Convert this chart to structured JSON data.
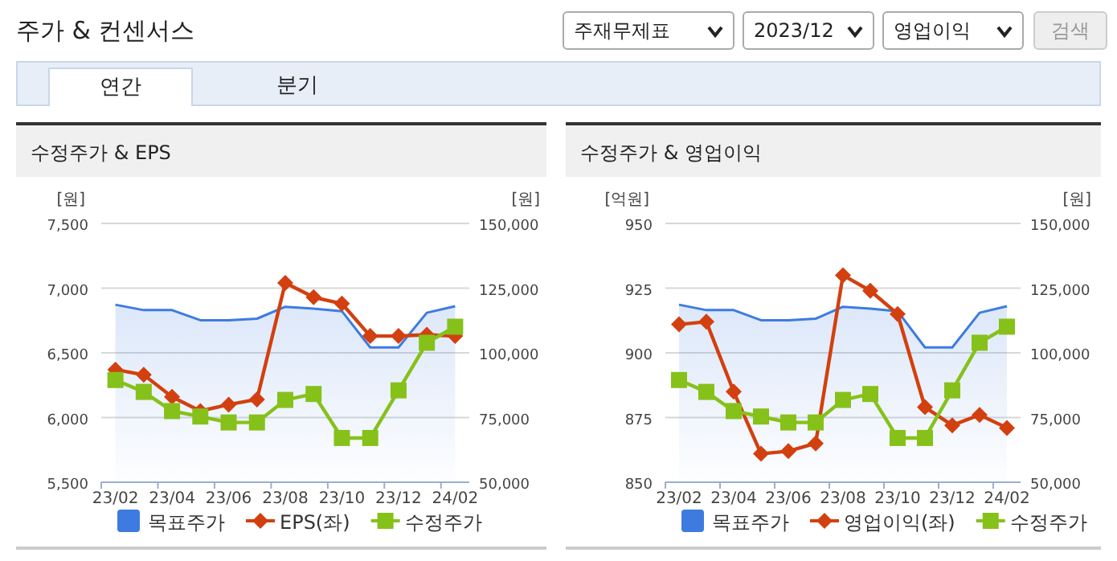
{
  "chart_data": [
    {
      "type": "other",
      "title": "주가 & 컨센서스",
      "annotations": [
        "주재무제표",
        "2023/12",
        "영업이익",
        "검색",
        "연간",
        "분기"
      ]
    },
    {
      "type": "line",
      "title": "수정주가 & EPS",
      "ylabel": "[원]",
      "y2label": "[원]",
      "categories": [
        "23/02",
        null,
        "23/04",
        null,
        "23/06",
        null,
        "23/08",
        null,
        "23/10",
        null,
        "23/12",
        null,
        "24/02"
      ],
      "ylim": [
        5500,
        7500
      ],
      "yticks": [
        {
          "value": 5500,
          "label": "5,500"
        },
        {
          "value": 6000,
          "label": "6,000"
        },
        {
          "value": 6500,
          "label": "6,500"
        },
        {
          "value": 7000,
          "label": "7,000"
        },
        {
          "value": 7500,
          "label": "7,500"
        }
      ],
      "y2lim": [
        50000,
        150000
      ],
      "y2ticks": [
        {
          "value": 50000,
          "label": "50,000"
        },
        {
          "value": 75000,
          "label": "75,000"
        },
        {
          "value": 100000,
          "label": "100,000"
        },
        {
          "value": 125000,
          "label": "125,000"
        },
        {
          "value": 150000,
          "label": "150,000"
        }
      ],
      "grid": "y",
      "legend": "bottom",
      "series": [
        {
          "name": "목표주가",
          "type": "area",
          "axis": "y2",
          "color": "#3d7be0",
          "marker": "none",
          "values": [
            118600,
            116500,
            116500,
            112600,
            112600,
            113200,
            117800,
            117100,
            116100,
            102100,
            102100,
            115500,
            118000
          ]
        },
        {
          "name": "EPS(좌)",
          "type": "line",
          "color": "#d2400f",
          "marker": "diamond",
          "values": [
            6370,
            6330,
            6160,
            6050,
            6100,
            6140,
            7040,
            6930,
            6880,
            6630,
            6630,
            6640,
            6630
          ]
        },
        {
          "name": "수정주가",
          "type": "line",
          "axis": "y2",
          "color": "#86c11a",
          "marker": "square",
          "values": [
            89500,
            84900,
            77500,
            75400,
            73100,
            73100,
            81800,
            84100,
            67100,
            67100,
            85500,
            103900,
            110100
          ]
        }
      ]
    },
    {
      "type": "line",
      "title": "수정주가 & 영업이익",
      "ylabel": "[억원]",
      "y2label": "[원]",
      "categories": [
        "23/02",
        null,
        "23/04",
        null,
        "23/06",
        null,
        "23/08",
        null,
        "23/10",
        null,
        "23/12",
        null,
        "24/02"
      ],
      "ylim": [
        850,
        950
      ],
      "yticks": [
        850,
        875,
        900,
        925,
        950
      ],
      "y2lim": [
        50000,
        150000
      ],
      "y2ticks": [
        {
          "value": 50000,
          "label": "50,000"
        },
        {
          "value": 75000,
          "label": "75,000"
        },
        {
          "value": 100000,
          "label": "100,000"
        },
        {
          "value": 125000,
          "label": "125,000"
        },
        {
          "value": 150000,
          "label": "150,000"
        }
      ],
      "grid": "y",
      "legend": "bottom",
      "series": [
        {
          "name": "목표주가",
          "type": "area",
          "axis": "y2",
          "color": "#3d7be0",
          "marker": "none",
          "values": [
            118600,
            116500,
            116500,
            112600,
            112600,
            113200,
            117800,
            117100,
            116100,
            102100,
            102100,
            115500,
            118000
          ]
        },
        {
          "name": "영업이익(좌)",
          "type": "line",
          "color": "#d2400f",
          "marker": "diamond",
          "values": [
            911,
            912,
            885,
            861,
            862,
            865,
            930,
            924,
            915,
            879,
            872,
            876,
            871
          ]
        },
        {
          "name": "수정주가",
          "type": "line",
          "axis": "y2",
          "color": "#86c11a",
          "marker": "square",
          "values": [
            89500,
            84900,
            77500,
            75400,
            73100,
            73100,
            81800,
            84100,
            67100,
            67100,
            85500,
            103900,
            110100
          ]
        }
      ]
    }
  ]
}
